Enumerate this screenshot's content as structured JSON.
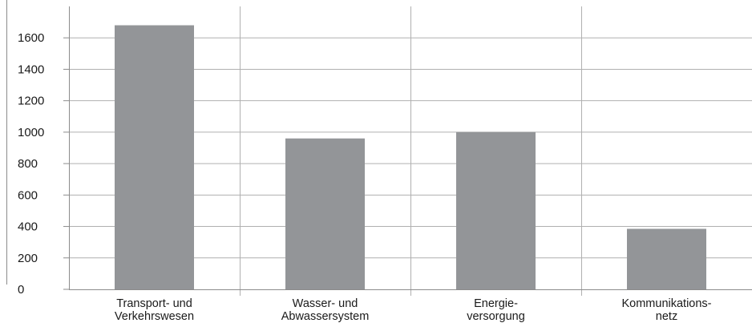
{
  "chart_data": {
    "type": "bar",
    "title": "",
    "xlabel": "",
    "ylabel": "",
    "categories": [
      [
        "Transport- und",
        "Verkehrswesen"
      ],
      [
        "Wasser- und",
        "Abwassersystem"
      ],
      [
        "Energie-",
        "versorgung"
      ],
      [
        "Kommunikations-",
        "netz"
      ]
    ],
    "values": [
      1680,
      960,
      1000,
      385
    ],
    "ylim": [
      0,
      1800
    ],
    "yticks": [
      0,
      200,
      400,
      600,
      800,
      1000,
      1200,
      1400,
      1600
    ],
    "ytick_labels": [
      "0",
      "200",
      "400",
      "600",
      "800",
      "1000",
      "1200",
      "1400",
      "1600"
    ],
    "grid": {
      "horizontal": true,
      "vertical_category_separators": true
    },
    "legend": "none",
    "colors": {
      "bar": "#939598",
      "grid": "#b0b0b0",
      "axis": "#8c8c8c",
      "text": "#1a1a1a"
    }
  }
}
